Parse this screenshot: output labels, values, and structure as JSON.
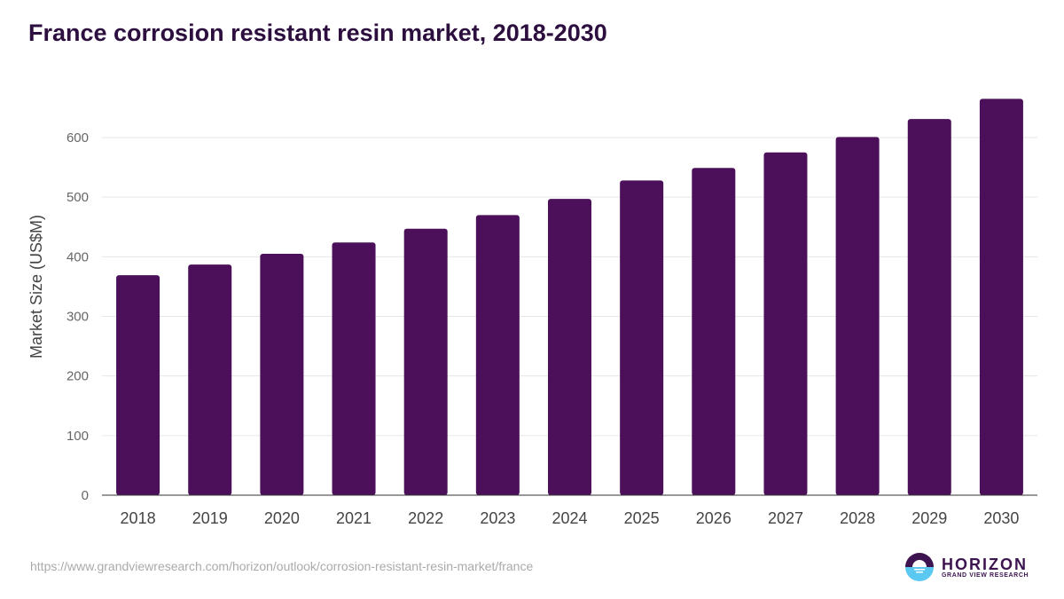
{
  "chart_data": {
    "type": "bar",
    "title": "France corrosion resistant resin market, 2018-2030",
    "xlabel": "",
    "ylabel": "Market Size (US$M)",
    "ylim": [
      0,
      700
    ],
    "yticks": [
      0,
      100,
      200,
      300,
      400,
      500,
      600
    ],
    "grid": true,
    "categories": [
      "2018",
      "2019",
      "2020",
      "2021",
      "2022",
      "2023",
      "2024",
      "2025",
      "2026",
      "2027",
      "2028",
      "2029",
      "2030"
    ],
    "values": [
      369,
      387,
      405,
      424,
      447,
      470,
      497,
      528,
      549,
      575,
      601,
      631,
      665
    ],
    "bar_color": "#4b1059"
  },
  "footer": {
    "source_url": "https://www.grandviewresearch.com/horizon/outlook/corrosion-resistant-resin-market/france",
    "logo_main": "HORIZON",
    "logo_sub": "GRAND VIEW RESEARCH"
  }
}
